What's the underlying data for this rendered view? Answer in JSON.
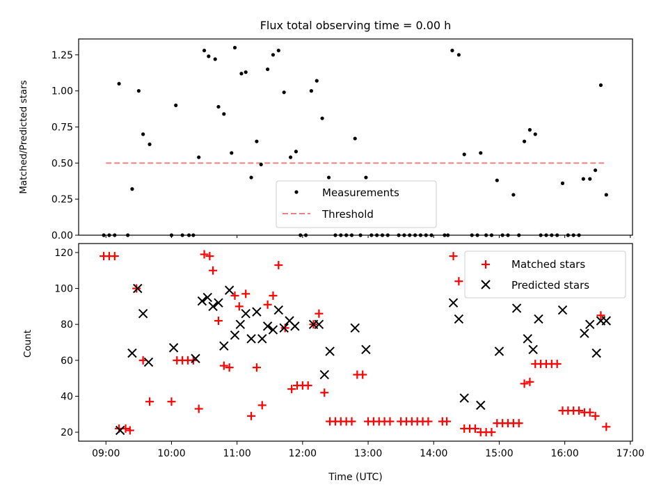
{
  "chart_data": [
    {
      "type": "scatter",
      "title": "Flux total observing time = 0.00 h",
      "ylabel": "Matched/Predicted stars",
      "xlabel": "",
      "ylim": [
        0,
        1.36
      ],
      "xlim": [
        "08:35",
        "17:02"
      ],
      "y_ticks": [
        "0.00",
        "0.25",
        "0.50",
        "0.75",
        "1.00",
        "1.25"
      ],
      "grid": false,
      "legend_position": "lower-center",
      "legend": {
        "measurements": "Measurements",
        "threshold": "Threshold"
      },
      "threshold": {
        "value": 0.5,
        "x_start": "09:00",
        "x_end": "16:38",
        "color": "#f08080"
      },
      "series": [
        {
          "name": "Measurements",
          "marker": "dot",
          "color": "#000000",
          "points": [
            [
              "08:58",
              0
            ],
            [
              "09:03",
              0
            ],
            [
              "09:08",
              0
            ],
            [
              "09:12",
              1.05
            ],
            [
              "09:20",
              0
            ],
            [
              "09:24",
              0.32
            ],
            [
              "09:30",
              1.0
            ],
            [
              "09:34",
              0.7
            ],
            [
              "09:40",
              0.63
            ],
            [
              "10:00",
              0
            ],
            [
              "10:04",
              0.9
            ],
            [
              "10:10",
              0
            ],
            [
              "10:16",
              0
            ],
            [
              "10:20",
              0
            ],
            [
              "10:25",
              0.54
            ],
            [
              "10:30",
              1.28
            ],
            [
              "10:34",
              1.24
            ],
            [
              "10:40",
              1.22
            ],
            [
              "10:43",
              0.89
            ],
            [
              "10:48",
              0.84
            ],
            [
              "10:55",
              0.57
            ],
            [
              "10:58",
              1.3
            ],
            [
              "11:04",
              1.12
            ],
            [
              "11:08",
              1.13
            ],
            [
              "11:13",
              0.4
            ],
            [
              "11:18",
              0.65
            ],
            [
              "11:22",
              0.49
            ],
            [
              "11:28",
              1.15
            ],
            [
              "11:33",
              1.25
            ],
            [
              "11:38",
              1.28
            ],
            [
              "11:43",
              0.99
            ],
            [
              "11:49",
              0.54
            ],
            [
              "11:54",
              0.58
            ],
            [
              "11:58",
              0
            ],
            [
              "12:03",
              0
            ],
            [
              "12:08",
              1.0
            ],
            [
              "12:13",
              1.07
            ],
            [
              "12:18",
              0.81
            ],
            [
              "12:24",
              0.4
            ],
            [
              "12:30",
              0
            ],
            [
              "12:35",
              0
            ],
            [
              "12:40",
              0
            ],
            [
              "12:45",
              0
            ],
            [
              "12:48",
              0.67
            ],
            [
              "12:53",
              0
            ],
            [
              "12:58",
              0.4
            ],
            [
              "13:03",
              0
            ],
            [
              "13:08",
              0
            ],
            [
              "13:13",
              0
            ],
            [
              "13:18",
              0
            ],
            [
              "13:28",
              0
            ],
            [
              "13:33",
              0
            ],
            [
              "13:38",
              0
            ],
            [
              "13:43",
              0
            ],
            [
              "13:48",
              0
            ],
            [
              "13:53",
              0
            ],
            [
              "13:58",
              0
            ],
            [
              "14:10",
              0
            ],
            [
              "14:13",
              0
            ],
            [
              "14:17",
              1.28
            ],
            [
              "14:23",
              1.25
            ],
            [
              "14:28",
              0.56
            ],
            [
              "14:35",
              0
            ],
            [
              "14:40",
              0
            ],
            [
              "14:43",
              0.57
            ],
            [
              "14:48",
              0
            ],
            [
              "14:53",
              0
            ],
            [
              "14:58",
              0.38
            ],
            [
              "15:03",
              0
            ],
            [
              "15:08",
              0
            ],
            [
              "15:13",
              0.28
            ],
            [
              "15:18",
              0
            ],
            [
              "15:23",
              0.65
            ],
            [
              "15:28",
              0.73
            ],
            [
              "15:33",
              0.7
            ],
            [
              "15:38",
              0
            ],
            [
              "15:43",
              0
            ],
            [
              "15:48",
              0
            ],
            [
              "15:53",
              0
            ],
            [
              "15:58",
              0.36
            ],
            [
              "16:03",
              0
            ],
            [
              "16:08",
              0
            ],
            [
              "16:13",
              0
            ],
            [
              "16:17",
              0.39
            ],
            [
              "16:23",
              0.39
            ],
            [
              "16:28",
              0.45
            ],
            [
              "16:33",
              1.04
            ],
            [
              "16:38",
              0.28
            ]
          ]
        }
      ]
    },
    {
      "type": "scatter",
      "title": "",
      "xlabel": "Time (UTC)",
      "ylabel": "Count",
      "ylim": [
        15,
        125
      ],
      "xlim": [
        "08:35",
        "17:02"
      ],
      "y_ticks": [
        "20",
        "40",
        "60",
        "80",
        "100",
        "120"
      ],
      "x_ticks": [
        "09:00",
        "10:00",
        "11:00",
        "12:00",
        "13:00",
        "14:00",
        "15:00",
        "16:00",
        "17:00"
      ],
      "grid": false,
      "legend_position": "top-right",
      "series": [
        {
          "name": "Matched stars",
          "marker": "plus",
          "color": "#ff0000",
          "points": [
            [
              "08:58",
              118
            ],
            [
              "09:03",
              118
            ],
            [
              "09:08",
              118
            ],
            [
              "09:12",
              22
            ],
            [
              "09:18",
              22
            ],
            [
              "09:22",
              21
            ],
            [
              "09:28",
              100
            ],
            [
              "09:34",
              60
            ],
            [
              "09:40",
              37
            ],
            [
              "10:00",
              37
            ],
            [
              "10:05",
              60
            ],
            [
              "10:10",
              60
            ],
            [
              "10:15",
              60
            ],
            [
              "10:20",
              60
            ],
            [
              "10:25",
              33
            ],
            [
              "10:30",
              119
            ],
            [
              "10:35",
              118
            ],
            [
              "10:38",
              110
            ],
            [
              "10:43",
              82
            ],
            [
              "10:48",
              57
            ],
            [
              "10:53",
              56
            ],
            [
              "10:58",
              96
            ],
            [
              "11:02",
              90
            ],
            [
              "11:08",
              97
            ],
            [
              "11:13",
              29
            ],
            [
              "11:18",
              56
            ],
            [
              "11:23",
              35
            ],
            [
              "11:28",
              91
            ],
            [
              "11:33",
              96
            ],
            [
              "11:38",
              113
            ],
            [
              "11:44",
              78
            ],
            [
              "11:50",
              44
            ],
            [
              "11:55",
              46
            ],
            [
              "12:00",
              46
            ],
            [
              "12:05",
              46
            ],
            [
              "12:10",
              80
            ],
            [
              "12:15",
              86
            ],
            [
              "12:20",
              42
            ],
            [
              "12:25",
              26
            ],
            [
              "12:30",
              26
            ],
            [
              "12:35",
              26
            ],
            [
              "12:40",
              26
            ],
            [
              "12:45",
              26
            ],
            [
              "12:50",
              52
            ],
            [
              "12:55",
              52
            ],
            [
              "13:00",
              26
            ],
            [
              "13:05",
              26
            ],
            [
              "13:10",
              26
            ],
            [
              "13:15",
              26
            ],
            [
              "13:20",
              26
            ],
            [
              "13:30",
              26
            ],
            [
              "13:35",
              26
            ],
            [
              "13:40",
              26
            ],
            [
              "13:45",
              26
            ],
            [
              "13:50",
              26
            ],
            [
              "13:55",
              26
            ],
            [
              "14:08",
              26
            ],
            [
              "14:12",
              26
            ],
            [
              "14:18",
              118
            ],
            [
              "14:23",
              104
            ],
            [
              "14:28",
              22
            ],
            [
              "14:33",
              22
            ],
            [
              "14:38",
              22
            ],
            [
              "14:43",
              20
            ],
            [
              "14:48",
              20
            ],
            [
              "14:53",
              20
            ],
            [
              "14:58",
              25
            ],
            [
              "15:03",
              25
            ],
            [
              "15:08",
              25
            ],
            [
              "15:13",
              25
            ],
            [
              "15:18",
              25
            ],
            [
              "15:23",
              47
            ],
            [
              "15:28",
              48
            ],
            [
              "15:33",
              58
            ],
            [
              "15:38",
              58
            ],
            [
              "15:43",
              58
            ],
            [
              "15:48",
              58
            ],
            [
              "15:53",
              58
            ],
            [
              "15:58",
              32
            ],
            [
              "16:03",
              32
            ],
            [
              "16:08",
              32
            ],
            [
              "16:13",
              32
            ],
            [
              "16:18",
              31
            ],
            [
              "16:23",
              31
            ],
            [
              "16:28",
              29
            ],
            [
              "16:33",
              85
            ],
            [
              "16:38",
              23
            ]
          ]
        },
        {
          "name": "Predicted stars",
          "marker": "x",
          "color": "#000000",
          "points": [
            [
              "09:13",
              21
            ],
            [
              "09:24",
              64
            ],
            [
              "09:29",
              100
            ],
            [
              "09:34",
              86
            ],
            [
              "09:39",
              59
            ],
            [
              "10:02",
              67
            ],
            [
              "10:22",
              61
            ],
            [
              "10:28",
              93
            ],
            [
              "10:33",
              95
            ],
            [
              "10:38",
              90
            ],
            [
              "10:43",
              92
            ],
            [
              "10:48",
              68
            ],
            [
              "10:53",
              99
            ],
            [
              "10:58",
              74
            ],
            [
              "11:03",
              80
            ],
            [
              "11:08",
              86
            ],
            [
              "11:13",
              72
            ],
            [
              "11:18",
              87
            ],
            [
              "11:23",
              72
            ],
            [
              "11:28",
              79
            ],
            [
              "11:33",
              77
            ],
            [
              "11:38",
              88
            ],
            [
              "11:43",
              78
            ],
            [
              "11:48",
              82
            ],
            [
              "11:53",
              79
            ],
            [
              "12:10",
              80
            ],
            [
              "12:15",
              80
            ],
            [
              "12:20",
              52
            ],
            [
              "12:25",
              65
            ],
            [
              "12:48",
              78
            ],
            [
              "12:58",
              66
            ],
            [
              "14:18",
              92
            ],
            [
              "14:23",
              83
            ],
            [
              "14:28",
              39
            ],
            [
              "14:43",
              35
            ],
            [
              "15:00",
              65
            ],
            [
              "15:16",
              89
            ],
            [
              "15:26",
              72
            ],
            [
              "15:31",
              66
            ],
            [
              "15:36",
              83
            ],
            [
              "15:58",
              88
            ],
            [
              "16:18",
              75
            ],
            [
              "16:23",
              80
            ],
            [
              "16:29",
              64
            ],
            [
              "16:33",
              82
            ],
            [
              "16:38",
              82
            ]
          ]
        }
      ]
    }
  ]
}
